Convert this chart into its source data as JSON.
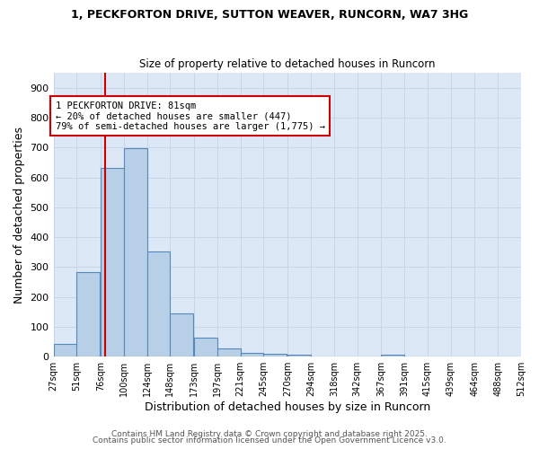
{
  "title1": "1, PECKFORTON DRIVE, SUTTON WEAVER, RUNCORN, WA7 3HG",
  "title2": "Size of property relative to detached houses in Runcorn",
  "xlabel": "Distribution of detached houses by size in Runcorn",
  "ylabel": "Number of detached properties",
  "bin_labels": [
    "27sqm",
    "51sqm",
    "76sqm",
    "100sqm",
    "124sqm",
    "148sqm",
    "173sqm",
    "197sqm",
    "221sqm",
    "245sqm",
    "270sqm",
    "294sqm",
    "318sqm",
    "342sqm",
    "367sqm",
    "391sqm",
    "415sqm",
    "439sqm",
    "464sqm",
    "488sqm",
    "512sqm"
  ],
  "bin_edges": [
    27,
    51,
    76,
    100,
    124,
    148,
    173,
    197,
    221,
    245,
    270,
    294,
    318,
    342,
    367,
    391,
    415,
    439,
    464,
    488,
    512
  ],
  "bar_heights": [
    43,
    283,
    632,
    697,
    353,
    144,
    63,
    29,
    14,
    11,
    8,
    0,
    0,
    0,
    8,
    0,
    0,
    0,
    0,
    0
  ],
  "bar_color": "#b8cfe8",
  "bar_edge_color": "#5588bb",
  "property_size": 81,
  "red_line_x": 81,
  "annotation_line1": "1 PECKFORTON DRIVE: 81sqm",
  "annotation_line2": "← 20% of detached houses are smaller (447)",
  "annotation_line3": "79% of semi-detached houses are larger (1,775) →",
  "annotation_box_color": "#ffffff",
  "annotation_box_edge_color": "#cc0000",
  "red_line_color": "#cc0000",
  "grid_color": "#c8d4e8",
  "ax_background_color": "#dce8f5",
  "fig_background_color": "#ffffff",
  "ylim": [
    0,
    950
  ],
  "yticks": [
    0,
    100,
    200,
    300,
    400,
    500,
    600,
    700,
    800,
    900
  ],
  "footer1": "Contains HM Land Registry data © Crown copyright and database right 2025.",
  "footer2": "Contains public sector information licensed under the Open Government Licence v3.0."
}
